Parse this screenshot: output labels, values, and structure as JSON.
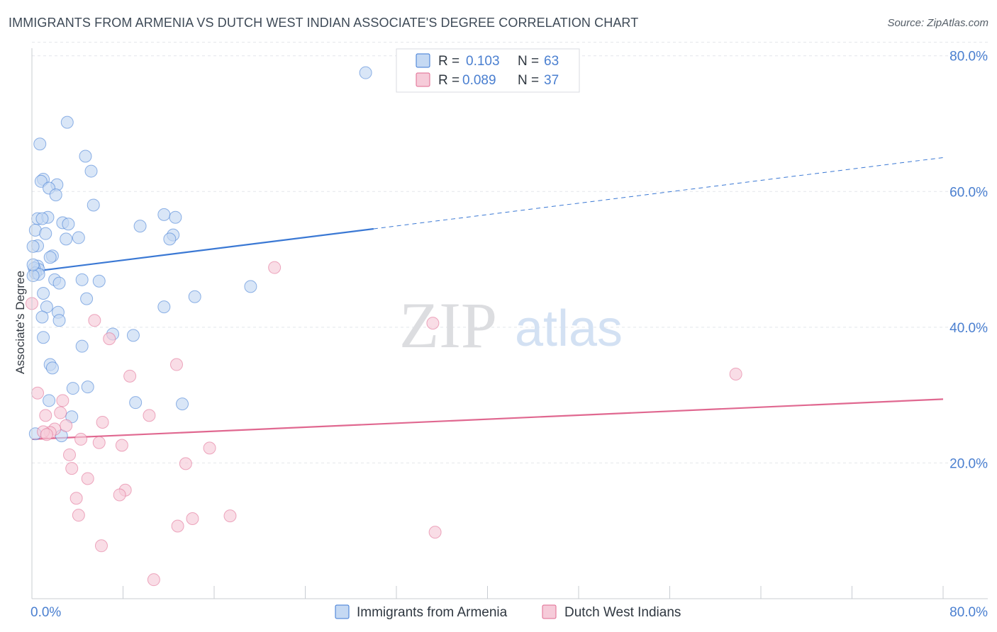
{
  "header": {
    "title": "IMMIGRANTS FROM ARMENIA VS DUTCH WEST INDIAN ASSOCIATE'S DEGREE CORRELATION CHART",
    "source": "Source: ZipAtlas.com"
  },
  "watermark": {
    "zip": "ZIP",
    "atlas": "atlas"
  },
  "colors": {
    "blue": "#3a78d4",
    "blue_fill": "#c5d9f3",
    "pink": "#e06890",
    "pink_fill": "#f6cbd9",
    "tick_text": "#4a7fd0",
    "grid": "#e3e6ea",
    "axis": "#c8ccd2"
  },
  "chart_data": {
    "type": "scatter",
    "title": "IMMIGRANTS FROM ARMENIA VS DUTCH WEST INDIAN ASSOCIATE'S DEGREE CORRELATION CHART",
    "xlabel": "",
    "ylabel": "Associate's Degree",
    "xlim": [
      0,
      80
    ],
    "ylim": [
      0,
      83
    ],
    "x_tick_labels": {
      "min": "0.0%",
      "max": "80.0%"
    },
    "y_ticks": [
      {
        "value": 20,
        "label": "20.0%"
      },
      {
        "value": 40,
        "label": "40.0%"
      },
      {
        "value": 60,
        "label": "60.0%"
      },
      {
        "value": 80,
        "label": "80.0%"
      }
    ],
    "legend_stats": [
      {
        "r_label": "R = ",
        "r_value": "0.103",
        "n_label": "N = ",
        "n_value": "63"
      },
      {
        "r_label": "R = ",
        "r_value": "0.089",
        "n_label": "N = ",
        "n_value": "37"
      }
    ],
    "series": [
      {
        "name": "Immigrants from Armenia",
        "color_key": "blue",
        "trend": {
          "x0": 0,
          "y0": 48.2,
          "x1": 30,
          "y1": 54.5,
          "dash_to_x": 80,
          "dash_to_y": 65.0
        },
        "points": [
          [
            29.3,
            77.5
          ],
          [
            3.1,
            70.2
          ],
          [
            0.7,
            67.0
          ],
          [
            4.7,
            65.2
          ],
          [
            5.2,
            63.0
          ],
          [
            1.0,
            61.8
          ],
          [
            0.8,
            61.5
          ],
          [
            2.2,
            61.0
          ],
          [
            1.5,
            60.5
          ],
          [
            2.1,
            59.5
          ],
          [
            5.4,
            58.0
          ],
          [
            11.6,
            56.6
          ],
          [
            12.6,
            56.2
          ],
          [
            0.5,
            56.0
          ],
          [
            1.4,
            56.2
          ],
          [
            0.9,
            56.0
          ],
          [
            2.7,
            55.4
          ],
          [
            3.2,
            55.2
          ],
          [
            9.5,
            54.9
          ],
          [
            0.3,
            54.3
          ],
          [
            1.2,
            53.8
          ],
          [
            12.4,
            53.6
          ],
          [
            12.1,
            53.0
          ],
          [
            4.1,
            53.2
          ],
          [
            3.0,
            53.0
          ],
          [
            0.5,
            52.0
          ],
          [
            0.1,
            51.9
          ],
          [
            1.8,
            50.5
          ],
          [
            1.6,
            50.3
          ],
          [
            0.5,
            49.0
          ],
          [
            0.6,
            48.5
          ],
          [
            0.2,
            48.7
          ],
          [
            0.3,
            48.0
          ],
          [
            0.6,
            47.8
          ],
          [
            0.1,
            47.6
          ],
          [
            2.0,
            47.0
          ],
          [
            4.4,
            47.0
          ],
          [
            5.9,
            46.8
          ],
          [
            2.4,
            46.5
          ],
          [
            19.2,
            46.0
          ],
          [
            1.0,
            45.0
          ],
          [
            14.3,
            44.5
          ],
          [
            4.8,
            44.2
          ],
          [
            1.3,
            43.0
          ],
          [
            11.6,
            43.0
          ],
          [
            2.3,
            42.2
          ],
          [
            0.9,
            41.5
          ],
          [
            2.4,
            41.0
          ],
          [
            7.1,
            39.0
          ],
          [
            8.9,
            38.8
          ],
          [
            1.0,
            38.5
          ],
          [
            4.4,
            37.2
          ],
          [
            1.6,
            34.5
          ],
          [
            1.8,
            34.0
          ],
          [
            4.9,
            31.2
          ],
          [
            3.6,
            31.0
          ],
          [
            1.5,
            29.2
          ],
          [
            9.1,
            28.9
          ],
          [
            13.2,
            28.7
          ],
          [
            3.5,
            26.8
          ],
          [
            0.1,
            49.2
          ],
          [
            2.6,
            24.0
          ],
          [
            0.3,
            24.3
          ]
        ]
      },
      {
        "name": "Dutch West Indians",
        "color_key": "pink",
        "trend": {
          "x0": 0,
          "y0": 23.5,
          "x1": 80,
          "y1": 29.4
        },
        "points": [
          [
            21.3,
            48.8
          ],
          [
            35.2,
            40.6
          ],
          [
            5.5,
            41.0
          ],
          [
            6.8,
            38.3
          ],
          [
            12.7,
            34.5
          ],
          [
            8.6,
            32.8
          ],
          [
            61.8,
            33.1
          ],
          [
            0.5,
            30.3
          ],
          [
            2.7,
            29.2
          ],
          [
            1.2,
            27.0
          ],
          [
            2.5,
            27.4
          ],
          [
            10.3,
            27.0
          ],
          [
            6.2,
            26.0
          ],
          [
            3.0,
            25.5
          ],
          [
            2.0,
            25.0
          ],
          [
            1.6,
            24.5
          ],
          [
            1.0,
            24.6
          ],
          [
            1.3,
            24.2
          ],
          [
            4.3,
            23.5
          ],
          [
            5.9,
            23.0
          ],
          [
            7.9,
            22.6
          ],
          [
            15.6,
            22.2
          ],
          [
            3.3,
            21.2
          ],
          [
            13.5,
            19.9
          ],
          [
            3.5,
            19.2
          ],
          [
            4.9,
            17.7
          ],
          [
            8.2,
            16.0
          ],
          [
            7.7,
            15.3
          ],
          [
            3.9,
            14.8
          ],
          [
            4.1,
            12.3
          ],
          [
            17.4,
            12.2
          ],
          [
            14.1,
            11.8
          ],
          [
            12.8,
            10.7
          ],
          [
            35.4,
            9.8
          ],
          [
            6.1,
            7.8
          ],
          [
            10.7,
            2.8
          ],
          [
            0.0,
            43.5
          ]
        ]
      }
    ]
  }
}
